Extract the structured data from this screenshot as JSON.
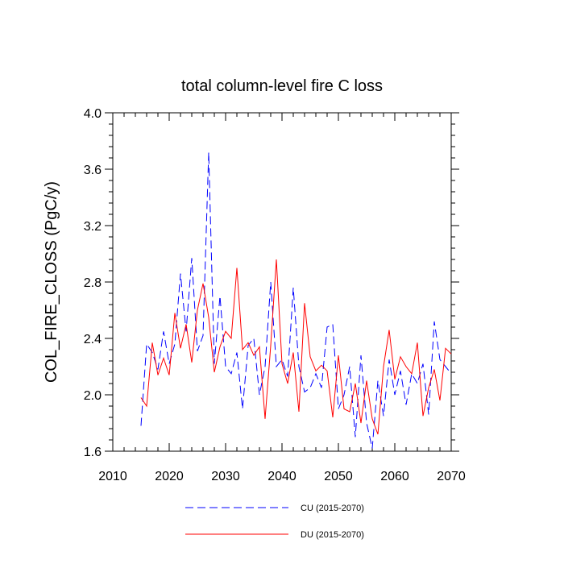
{
  "chart_data": {
    "type": "line",
    "title": "total column-level fire C loss",
    "xlabel": "",
    "ylabel": "COL_FIRE_CLOSS  (PgC/y)",
    "xlim": [
      2010,
      2070
    ],
    "ylim": [
      1.6,
      4.0
    ],
    "xticks": [
      2010,
      2020,
      2030,
      2040,
      2050,
      2060,
      2070
    ],
    "xtick_labels": [
      "2010",
      "2020",
      "2030",
      "2040",
      "2050",
      "2060",
      "2070"
    ],
    "yticks": [
      1.6,
      2.0,
      2.4,
      2.8,
      3.2,
      3.6,
      4.0
    ],
    "ytick_labels": [
      "1.6",
      "2.0",
      "2.4",
      "2.8",
      "3.2",
      "3.6",
      "4.0"
    ],
    "x": [
      2015,
      2016,
      2017,
      2018,
      2019,
      2020,
      2021,
      2022,
      2023,
      2024,
      2025,
      2026,
      2027,
      2028,
      2029,
      2030,
      2031,
      2032,
      2033,
      2034,
      2035,
      2036,
      2037,
      2038,
      2039,
      2040,
      2041,
      2042,
      2043,
      2044,
      2045,
      2046,
      2047,
      2048,
      2049,
      2050,
      2051,
      2052,
      2053,
      2054,
      2055,
      2056,
      2057,
      2058,
      2059,
      2060,
      2061,
      2062,
      2063,
      2064,
      2065,
      2066,
      2067,
      2068,
      2069,
      2070
    ],
    "series": [
      {
        "name": "CU (2015-2070)",
        "color": "#0000ff",
        "style": "dashed",
        "values": [
          1.78,
          2.36,
          2.3,
          2.18,
          2.45,
          2.22,
          2.36,
          2.86,
          2.45,
          2.97,
          2.31,
          2.42,
          3.72,
          2.22,
          2.7,
          2.2,
          2.15,
          2.3,
          1.9,
          2.35,
          2.4,
          2.0,
          2.2,
          2.8,
          2.2,
          2.25,
          2.13,
          2.76,
          2.2,
          2.02,
          2.05,
          2.15,
          2.05,
          2.48,
          2.5,
          1.9,
          2.0,
          2.2,
          1.7,
          2.28,
          1.8,
          1.62,
          2.1,
          1.85,
          2.25,
          2.0,
          2.17,
          1.93,
          2.15,
          2.08,
          2.22,
          1.86,
          2.52,
          2.25,
          2.2,
          2.15
        ]
      },
      {
        "name": "DU (2015-2070)",
        "color": "#ff0000",
        "style": "solid",
        "values": [
          1.98,
          1.92,
          2.37,
          2.14,
          2.26,
          2.14,
          2.58,
          2.33,
          2.5,
          2.23,
          2.6,
          2.79,
          2.55,
          2.16,
          2.34,
          2.45,
          2.4,
          2.9,
          2.32,
          2.37,
          2.28,
          2.34,
          1.83,
          2.35,
          2.96,
          2.22,
          2.08,
          2.3,
          1.88,
          2.65,
          2.27,
          2.17,
          2.21,
          2.17,
          1.84,
          2.28,
          1.9,
          1.88,
          2.08,
          1.8,
          2.1,
          1.83,
          1.72,
          2.2,
          2.46,
          2.11,
          2.27,
          2.2,
          2.15,
          2.37,
          1.85,
          2.05,
          2.18,
          1.96,
          2.33,
          2.29
        ]
      }
    ],
    "legend": {
      "position": "bottom-center"
    }
  }
}
